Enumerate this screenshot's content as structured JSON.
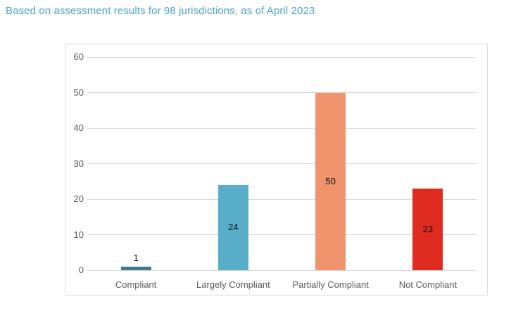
{
  "chart_data": {
    "type": "bar",
    "title": "Based on assessment results for 98 jurisdictions, as of April 2023",
    "categories": [
      "Compliant",
      "Largely Compliant",
      "Partially Compliant",
      "Not Compliant"
    ],
    "values": [
      1,
      24,
      50,
      23
    ],
    "data_labels": [
      "1",
      "24",
      "50",
      "23"
    ],
    "bar_colors": [
      "#3C7B8E",
      "#58AEC9",
      "#F0946E",
      "#DF2B20"
    ],
    "xlabel": "",
    "ylabel": "",
    "ylim": [
      0,
      60
    ],
    "yticks": [
      0,
      10,
      20,
      30,
      40,
      50,
      60
    ],
    "grid": true,
    "legend": "none",
    "total_note": "98 jurisdictions"
  },
  "colors": {
    "title_text": "#47A4C6",
    "axis_text": "#595959",
    "gridline": "#D9D9D9",
    "chart_border": "#D9D9D9",
    "value_label_text": "#0D0D0D",
    "background": "#FFFFFF"
  }
}
